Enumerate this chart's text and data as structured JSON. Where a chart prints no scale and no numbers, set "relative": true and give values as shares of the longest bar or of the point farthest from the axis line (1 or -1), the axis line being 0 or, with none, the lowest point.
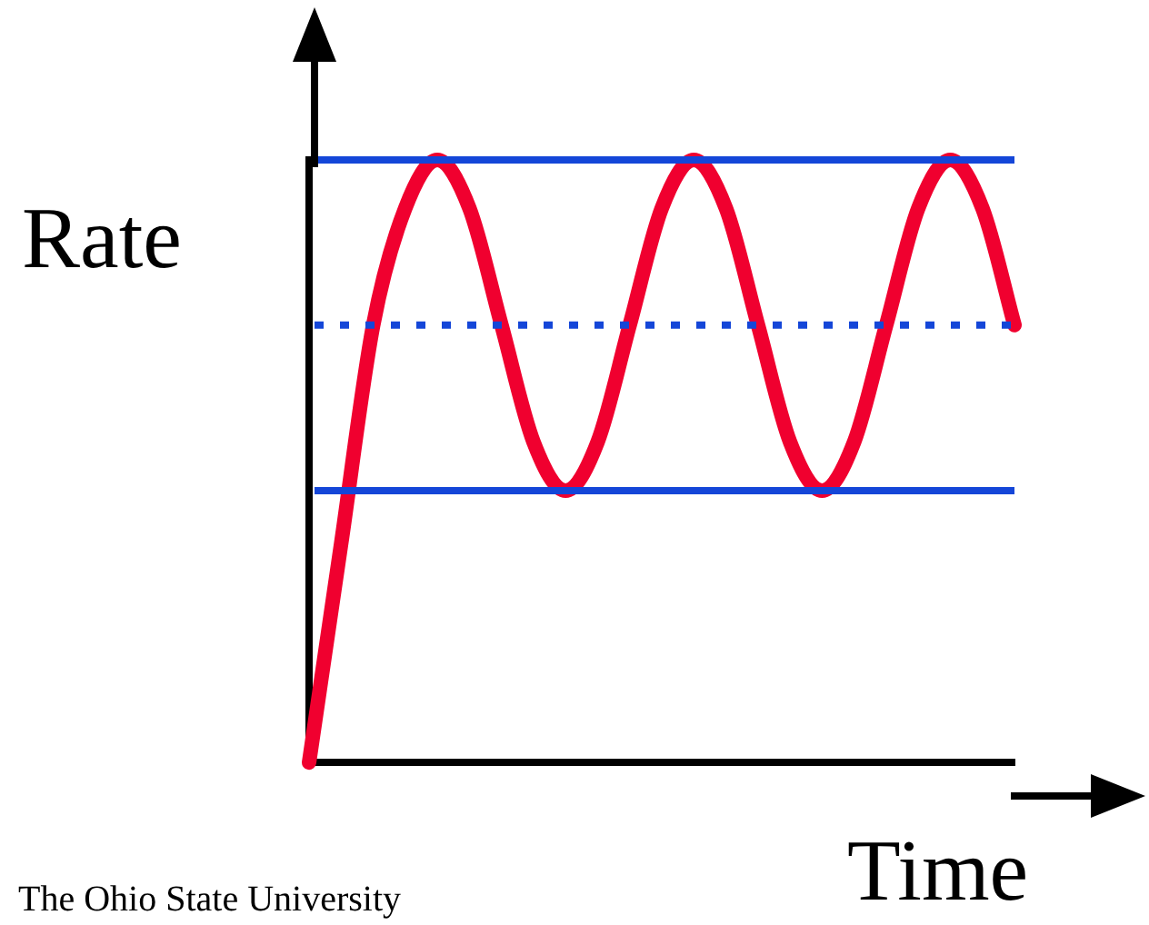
{
  "chart_data": {
    "type": "line",
    "relative": true,
    "xlabel": "Time",
    "ylabel": "Rate",
    "annotations": [
      "The Ohio State University"
    ],
    "categories": [
      null,
      null,
      null,
      null,
      null,
      null,
      null,
      null,
      null,
      null,
      null,
      null,
      null,
      null,
      null,
      null,
      null,
      null,
      null,
      null,
      null,
      null,
      null
    ],
    "series": [
      {
        "color": "#f0002f",
        "values": [
          0,
          0.363,
          0.726,
          0.92,
          1,
          0.92,
          0.726,
          0.532,
          0.451,
          0.532,
          0.726,
          0.92,
          1,
          0.92,
          0.726,
          0.532,
          0.451,
          0.532,
          0.726,
          0.92,
          1,
          0.92,
          0.726
        ]
      }
    ],
    "ref_lines": [
      {
        "axis": "y",
        "value": 1,
        "color": "#1446d8",
        "line_style": "solid"
      },
      {
        "axis": "y",
        "value": 0.726,
        "color": "#1446d8",
        "line_style": "dotted"
      },
      {
        "axis": "y",
        "value": 0.451,
        "color": "#1446d8",
        "line_style": "solid"
      }
    ],
    "grid": false,
    "legend": false,
    "marker": "none",
    "line_style": "solid"
  }
}
